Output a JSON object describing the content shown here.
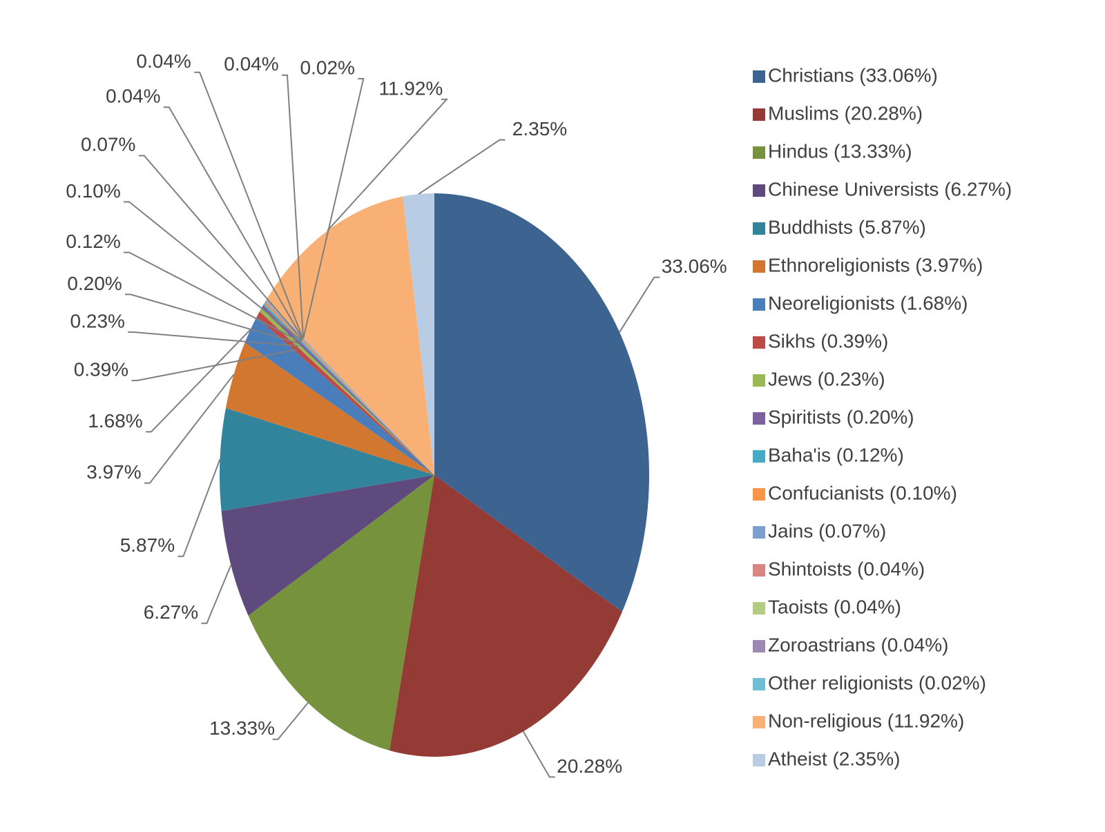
{
  "chart_data": {
    "type": "pie",
    "categories": [
      "Christians (33.06%)",
      "Muslims (20.28%)",
      "Hindus (13.33%)",
      "Chinese Universists (6.27%)",
      "Buddhists (5.87%)",
      "Ethnoreligionists (3.97%)",
      "Neoreligionists (1.68%)",
      "Sikhs (0.39%)",
      "Jews (0.23%)",
      "Spiritists (0.20%)",
      "Baha'is (0.12%)",
      "Confucianists (0.10%)",
      "Jains (0.07%)",
      "Shintoists (0.04%)",
      "Taoists (0.04%)",
      "Zoroastrians (0.04%)",
      "Other religionists (0.02%)",
      "Non-religious (11.92%)",
      "Atheist (2.35%)"
    ],
    "values": [
      33.06,
      20.28,
      13.33,
      6.27,
      5.87,
      3.97,
      1.68,
      0.39,
      0.23,
      0.2,
      0.12,
      0.1,
      0.07,
      0.04,
      0.04,
      0.04,
      0.02,
      11.92,
      2.35
    ],
    "value_labels": [
      "33.06%",
      "20.28%",
      "13.33%",
      "6.27%",
      "5.87%",
      "3.97%",
      "1.68%",
      "0.39%",
      "0.23%",
      "0.20%",
      "0.12%",
      "0.10%",
      "0.07%",
      "0.04%",
      "0.04%",
      "0.04%",
      "0.02%",
      "11.92%",
      "2.35%"
    ],
    "colors": [
      "#3d6390",
      "#953b36",
      "#76923c",
      "#5e4a7c",
      "#31849b",
      "#d2772f",
      "#4a7ebb",
      "#be4b48",
      "#98b954",
      "#7d60a0",
      "#46aac5",
      "#f79646",
      "#7c9fd0",
      "#d98584",
      "#b3cc82",
      "#9d88b5",
      "#71bdd4",
      "#f9b074",
      "#b8cce4"
    ],
    "legend": "right"
  }
}
